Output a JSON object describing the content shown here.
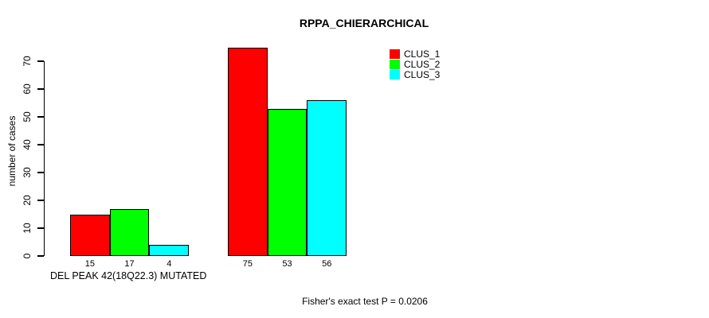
{
  "chart_data": {
    "type": "bar",
    "title": "RPPA_CHIERARCHICAL",
    "ylabel": "number of cases",
    "xlabel": "DEL PEAK 42(18Q22.3) MUTATED",
    "ylim": [
      0,
      70
    ],
    "yticks": [
      0,
      10,
      20,
      30,
      40,
      50,
      60,
      70
    ],
    "grid": false,
    "legend_position": "top-right",
    "value_labels_shown": true,
    "series": [
      {
        "name": "CLUS_1",
        "color": "#ff0000",
        "values": [
          15,
          75
        ]
      },
      {
        "name": "CLUS_2",
        "color": "#00ff00",
        "values": [
          17,
          53
        ]
      },
      {
        "name": "CLUS_3",
        "color": "#00ffff",
        "values": [
          4,
          56
        ]
      }
    ],
    "annotation": "Fisher's exact test P = 0.0206"
  }
}
